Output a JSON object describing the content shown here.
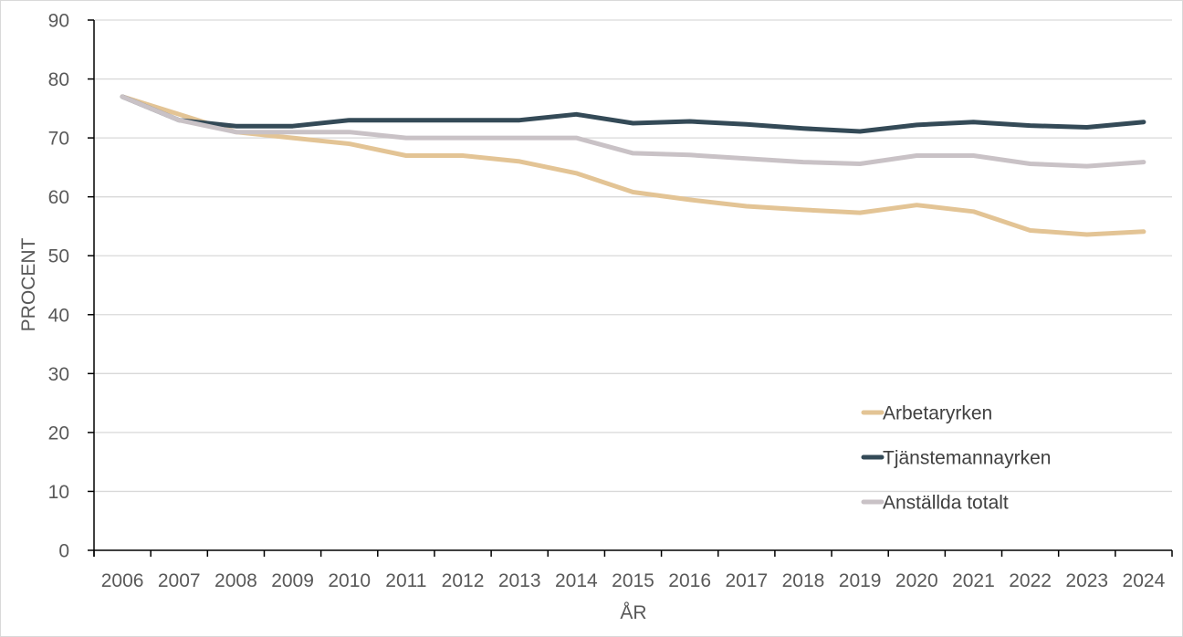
{
  "chart_data": {
    "type": "line",
    "title": "",
    "xlabel": "ÅR",
    "ylabel": "PROCENT",
    "ylim": [
      0,
      90
    ],
    "yticks": [
      0,
      10,
      20,
      30,
      40,
      50,
      60,
      70,
      80,
      90
    ],
    "grid": true,
    "legend_position": "lower-right",
    "categories": [
      "2006",
      "2007",
      "2008",
      "2009",
      "2010",
      "2011",
      "2012",
      "2013",
      "2014",
      "2015",
      "2016",
      "2017",
      "2018",
      "2019",
      "2020",
      "2021",
      "2022",
      "2023",
      "2024"
    ],
    "series": [
      {
        "name": "Arbetaryrken",
        "color": "#e3c495",
        "values": [
          77,
          74,
          71,
          70,
          69,
          67,
          67,
          66,
          64,
          60.8,
          59.5,
          58.4,
          57.8,
          57.3,
          58.6,
          57.5,
          54.3,
          53.6,
          54.1
        ]
      },
      {
        "name": "Tjänstemannayrken",
        "color": "#344a57",
        "values": [
          77,
          73,
          72,
          72,
          73,
          73,
          73,
          73,
          74,
          72.5,
          72.8,
          72.3,
          71.6,
          71.1,
          72.2,
          72.7,
          72.1,
          71.8,
          72.7
        ]
      },
      {
        "name": "Anställda totalt",
        "color": "#c9c2c6",
        "values": [
          77,
          73,
          71,
          71,
          71,
          70,
          70,
          70,
          70,
          67.4,
          67.1,
          66.5,
          65.9,
          65.6,
          67.0,
          67.0,
          65.6,
          65.2,
          65.9
        ]
      }
    ]
  }
}
